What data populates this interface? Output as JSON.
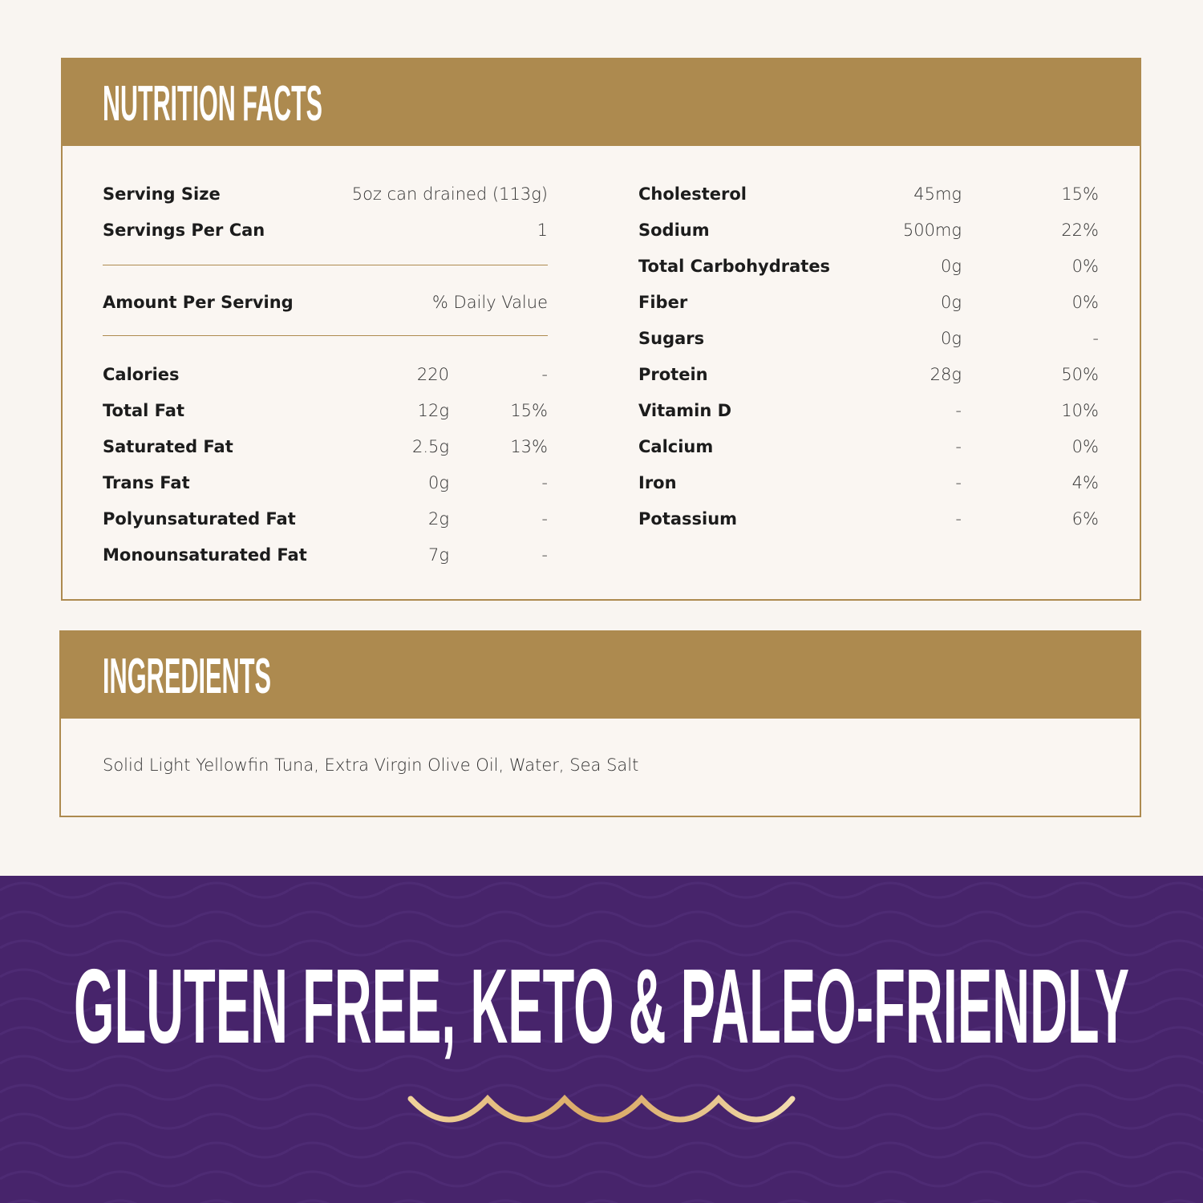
{
  "nutrition": {
    "title": "NUTRITION FACTS",
    "serving_size": {
      "label": "Serving Size",
      "value": "5oz can drained (113g)"
    },
    "servings_per_can": {
      "label": "Servings Per Can",
      "value": "1"
    },
    "amount_per_serving": "Amount Per Serving",
    "daily_value_header": "% Daily Value",
    "left_rows": [
      {
        "label": "Calories",
        "amount": "220",
        "dv": "-"
      },
      {
        "label": "Total Fat",
        "amount": "12g",
        "dv": "15%"
      },
      {
        "label": "Saturated Fat",
        "amount": "2.5g",
        "dv": "13%"
      },
      {
        "label": "Trans Fat",
        "amount": "0g",
        "dv": "-"
      },
      {
        "label": "Polyunsaturated Fat",
        "amount": "2g",
        "dv": "-"
      },
      {
        "label": "Monounsaturated Fat",
        "amount": "7g",
        "dv": "-"
      }
    ],
    "right_rows": [
      {
        "label": "Cholesterol",
        "amount": "45mg",
        "dv": "15%"
      },
      {
        "label": "Sodium",
        "amount": "500mg",
        "dv": "22%"
      },
      {
        "label": "Total Carbohydrates",
        "amount": "0g",
        "dv": "0%"
      },
      {
        "label": "Fiber",
        "amount": "0g",
        "dv": "0%"
      },
      {
        "label": "Sugars",
        "amount": "0g",
        "dv": "-"
      },
      {
        "label": "Protein",
        "amount": "28g",
        "dv": "50%"
      },
      {
        "label": "Vitamin D",
        "amount": "-",
        "dv": "10%"
      },
      {
        "label": "Calcium",
        "amount": "-",
        "dv": "0%"
      },
      {
        "label": "Iron",
        "amount": "-",
        "dv": "4%"
      },
      {
        "label": "Potassium",
        "amount": "-",
        "dv": "6%"
      }
    ]
  },
  "ingredients": {
    "title": "INGREDIENTS",
    "text": "Solid Light Yellowfin Tuna, Extra Virgin Olive Oil, Water, Sea Salt"
  },
  "banner": {
    "headline": "GLUTEN FREE, KETO & PALEO-FRIENDLY",
    "decoration_icon": "wave-icon"
  },
  "colors": {
    "gold": "#ad8a4f",
    "purple": "#47246b",
    "background": "#f9f5f1"
  }
}
